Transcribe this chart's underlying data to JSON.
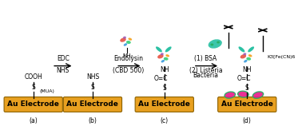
{
  "background_color": "#ffffff",
  "electrode_color": "#E8A020",
  "electrode_border_color": "#8B6000",
  "electrode_text": "Au Electrode",
  "electrode_text_color": "#000000",
  "electrode_font_size": 6.5,
  "panels": [
    "(a)",
    "(b)",
    "(c)",
    "(d)"
  ],
  "arrow_label_edc": "EDC",
  "arrow_label_nhs": "NHS",
  "arrow_label_endolysin": "Endolysin",
  "arrow_label_cbd": "(CBD 500)",
  "arrow_label_bsa": "(1) BSA",
  "arrow_label_listeria": "(2) Listeria",
  "arrow_label_bacteria": "Bacteria",
  "teal_color": "#1ABC9C",
  "green_color": "#27AE60",
  "magenta_color": "#E91E8C",
  "line_color": "#000000",
  "text_color": "#000000",
  "font_size_tiny": 4.5,
  "font_size_small": 5.5,
  "font_size_medium": 6.5
}
